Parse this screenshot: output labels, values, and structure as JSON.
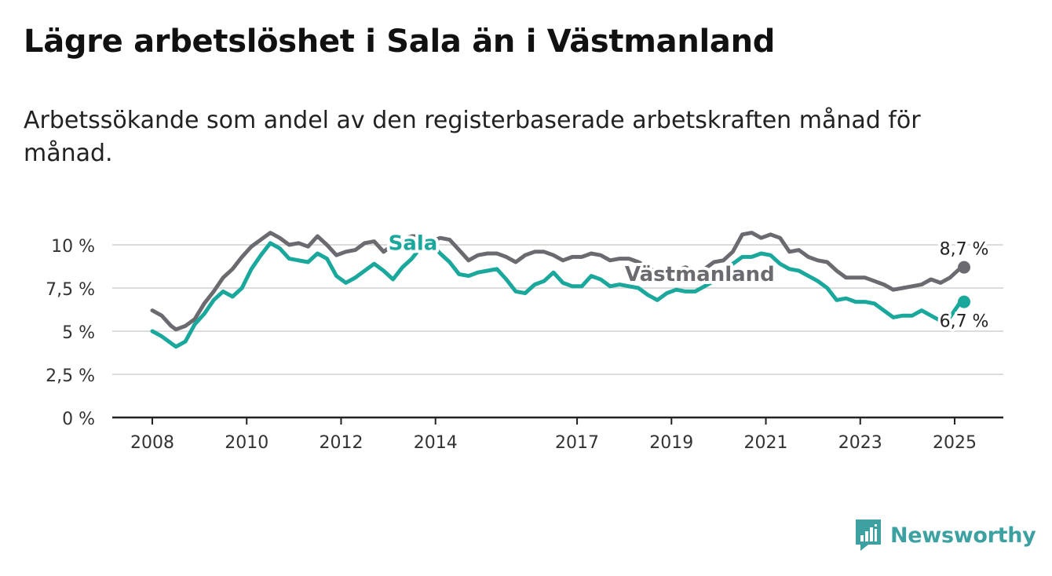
{
  "title": "Lägre arbetslöshet i Sala än i Västmanland",
  "subtitle": "Arbetssökande som andel av den registerbaserade arbetskraften månad för månad.",
  "brand": {
    "name": "Newsworthy",
    "icon": "newsworthy-logo-icon",
    "color": "#3ea1a1"
  },
  "chart_data": {
    "type": "line",
    "ylim": [
      0,
      11
    ],
    "xlim": [
      2007.8,
      2026.0
    ],
    "yticks": [
      0,
      2.5,
      5,
      7.5,
      10
    ],
    "ytick_labels": [
      "0 %",
      "2,5 %",
      "5 %",
      "7,5 %",
      "10 %"
    ],
    "xticks": [
      2008,
      2010,
      2012,
      2014,
      2017,
      2019,
      2021,
      2023,
      2025
    ],
    "xtick_labels": [
      "2008",
      "2010",
      "2012",
      "2014",
      "2017",
      "2019",
      "2021",
      "2023",
      "2025"
    ],
    "grid": true,
    "series": [
      {
        "name": "Västmanland",
        "color": "#6b6a70",
        "end_label": "8,7 %",
        "points": [
          [
            2008.0,
            6.2
          ],
          [
            2008.2,
            5.9
          ],
          [
            2008.4,
            5.3
          ],
          [
            2008.5,
            5.1
          ],
          [
            2008.7,
            5.3
          ],
          [
            2008.9,
            5.7
          ],
          [
            2009.1,
            6.6
          ],
          [
            2009.3,
            7.3
          ],
          [
            2009.5,
            8.1
          ],
          [
            2009.7,
            8.6
          ],
          [
            2009.9,
            9.3
          ],
          [
            2010.1,
            9.9
          ],
          [
            2010.3,
            10.3
          ],
          [
            2010.5,
            10.7
          ],
          [
            2010.7,
            10.4
          ],
          [
            2010.9,
            10.0
          ],
          [
            2011.1,
            10.1
          ],
          [
            2011.3,
            9.9
          ],
          [
            2011.5,
            10.5
          ],
          [
            2011.7,
            10.0
          ],
          [
            2011.9,
            9.4
          ],
          [
            2012.1,
            9.6
          ],
          [
            2012.3,
            9.7
          ],
          [
            2012.5,
            10.1
          ],
          [
            2012.7,
            10.2
          ],
          [
            2012.9,
            9.6
          ],
          [
            2013.1,
            10.0
          ],
          [
            2013.3,
            10.3
          ],
          [
            2013.5,
            10.5
          ],
          [
            2013.7,
            10.5
          ],
          [
            2013.9,
            10.2
          ],
          [
            2014.1,
            10.4
          ],
          [
            2014.3,
            10.3
          ],
          [
            2014.5,
            9.7
          ],
          [
            2014.7,
            9.1
          ],
          [
            2014.9,
            9.4
          ],
          [
            2015.1,
            9.5
          ],
          [
            2015.3,
            9.5
          ],
          [
            2015.5,
            9.3
          ],
          [
            2015.7,
            9.0
          ],
          [
            2015.9,
            9.4
          ],
          [
            2016.1,
            9.6
          ],
          [
            2016.3,
            9.6
          ],
          [
            2016.5,
            9.4
          ],
          [
            2016.7,
            9.1
          ],
          [
            2016.9,
            9.3
          ],
          [
            2017.1,
            9.3
          ],
          [
            2017.3,
            9.5
          ],
          [
            2017.5,
            9.4
          ],
          [
            2017.7,
            9.1
          ],
          [
            2017.9,
            9.2
          ],
          [
            2018.1,
            9.2
          ],
          [
            2018.3,
            9.0
          ],
          [
            2018.5,
            8.7
          ],
          [
            2018.7,
            8.4
          ],
          [
            2018.9,
            8.3
          ],
          [
            2019.1,
            8.5
          ],
          [
            2019.3,
            8.7
          ],
          [
            2019.5,
            8.4
          ],
          [
            2019.7,
            8.6
          ],
          [
            2019.9,
            9.0
          ],
          [
            2020.1,
            9.1
          ],
          [
            2020.3,
            9.6
          ],
          [
            2020.5,
            10.6
          ],
          [
            2020.7,
            10.7
          ],
          [
            2020.9,
            10.4
          ],
          [
            2021.1,
            10.6
          ],
          [
            2021.3,
            10.4
          ],
          [
            2021.5,
            9.6
          ],
          [
            2021.7,
            9.7
          ],
          [
            2021.9,
            9.3
          ],
          [
            2022.1,
            9.1
          ],
          [
            2022.3,
            9.0
          ],
          [
            2022.5,
            8.5
          ],
          [
            2022.7,
            8.1
          ],
          [
            2022.9,
            8.1
          ],
          [
            2023.1,
            8.1
          ],
          [
            2023.3,
            7.9
          ],
          [
            2023.5,
            7.7
          ],
          [
            2023.7,
            7.4
          ],
          [
            2023.9,
            7.5
          ],
          [
            2024.1,
            7.6
          ],
          [
            2024.3,
            7.7
          ],
          [
            2024.5,
            8.0
          ],
          [
            2024.7,
            7.8
          ],
          [
            2024.9,
            8.1
          ],
          [
            2025.1,
            8.6
          ],
          [
            2025.2,
            8.7
          ]
        ]
      },
      {
        "name": "Sala",
        "color": "#1aa79c",
        "end_label": "6,7 %",
        "points": [
          [
            2008.0,
            5.0
          ],
          [
            2008.2,
            4.7
          ],
          [
            2008.4,
            4.3
          ],
          [
            2008.5,
            4.1
          ],
          [
            2008.7,
            4.4
          ],
          [
            2008.9,
            5.4
          ],
          [
            2009.1,
            6.0
          ],
          [
            2009.3,
            6.8
          ],
          [
            2009.5,
            7.3
          ],
          [
            2009.7,
            7.0
          ],
          [
            2009.9,
            7.5
          ],
          [
            2010.1,
            8.6
          ],
          [
            2010.3,
            9.4
          ],
          [
            2010.5,
            10.1
          ],
          [
            2010.7,
            9.8
          ],
          [
            2010.9,
            9.2
          ],
          [
            2011.1,
            9.1
          ],
          [
            2011.3,
            9.0
          ],
          [
            2011.5,
            9.5
          ],
          [
            2011.7,
            9.2
          ],
          [
            2011.9,
            8.2
          ],
          [
            2012.1,
            7.8
          ],
          [
            2012.3,
            8.1
          ],
          [
            2012.5,
            8.5
          ],
          [
            2012.7,
            8.9
          ],
          [
            2012.9,
            8.5
          ],
          [
            2013.1,
            8.0
          ],
          [
            2013.3,
            8.7
          ],
          [
            2013.5,
            9.2
          ],
          [
            2013.7,
            9.9
          ],
          [
            2013.9,
            10.1
          ],
          [
            2014.1,
            9.5
          ],
          [
            2014.3,
            9.0
          ],
          [
            2014.5,
            8.3
          ],
          [
            2014.7,
            8.2
          ],
          [
            2014.9,
            8.4
          ],
          [
            2015.1,
            8.5
          ],
          [
            2015.3,
            8.6
          ],
          [
            2015.5,
            8.0
          ],
          [
            2015.7,
            7.3
          ],
          [
            2015.9,
            7.2
          ],
          [
            2016.1,
            7.7
          ],
          [
            2016.3,
            7.9
          ],
          [
            2016.5,
            8.4
          ],
          [
            2016.7,
            7.8
          ],
          [
            2016.9,
            7.6
          ],
          [
            2017.1,
            7.6
          ],
          [
            2017.3,
            8.2
          ],
          [
            2017.5,
            8.0
          ],
          [
            2017.7,
            7.6
          ],
          [
            2017.9,
            7.7
          ],
          [
            2018.1,
            7.6
          ],
          [
            2018.3,
            7.5
          ],
          [
            2018.5,
            7.1
          ],
          [
            2018.7,
            6.8
          ],
          [
            2018.9,
            7.2
          ],
          [
            2019.1,
            7.4
          ],
          [
            2019.3,
            7.3
          ],
          [
            2019.5,
            7.3
          ],
          [
            2019.7,
            7.6
          ],
          [
            2019.9,
            7.9
          ],
          [
            2020.1,
            8.4
          ],
          [
            2020.3,
            8.9
          ],
          [
            2020.5,
            9.3
          ],
          [
            2020.7,
            9.3
          ],
          [
            2020.9,
            9.5
          ],
          [
            2021.1,
            9.4
          ],
          [
            2021.3,
            8.9
          ],
          [
            2021.5,
            8.6
          ],
          [
            2021.7,
            8.5
          ],
          [
            2021.9,
            8.2
          ],
          [
            2022.1,
            7.9
          ],
          [
            2022.3,
            7.5
          ],
          [
            2022.5,
            6.8
          ],
          [
            2022.7,
            6.9
          ],
          [
            2022.9,
            6.7
          ],
          [
            2023.1,
            6.7
          ],
          [
            2023.3,
            6.6
          ],
          [
            2023.5,
            6.2
          ],
          [
            2023.7,
            5.8
          ],
          [
            2023.9,
            5.9
          ],
          [
            2024.1,
            5.9
          ],
          [
            2024.3,
            6.2
          ],
          [
            2024.5,
            5.9
          ],
          [
            2024.7,
            5.6
          ],
          [
            2024.9,
            5.8
          ],
          [
            2025.1,
            6.6
          ],
          [
            2025.2,
            6.7
          ]
        ]
      }
    ]
  }
}
